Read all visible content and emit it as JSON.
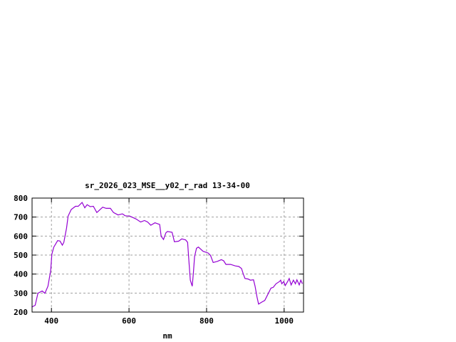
{
  "chart_data": {
    "type": "line",
    "title": "sr_2026_023_MSE__y02_r_rad 13-34-00",
    "xlabel": "nm",
    "ylabel": "",
    "xlim": [
      350,
      1050
    ],
    "ylim": [
      200,
      800
    ],
    "xticks": [
      400,
      600,
      800,
      1000
    ],
    "yticks": [
      200,
      300,
      400,
      500,
      600,
      700,
      800
    ],
    "grid": true,
    "line_color": "#9400d3",
    "series": [
      {
        "x": [
          349,
          358,
          365,
          376,
          383,
          391,
          398,
          401,
          406,
          416,
          422,
          428,
          432,
          439,
          443,
          451,
          462,
          469,
          479,
          486,
          492,
          500,
          508,
          517,
          532,
          541,
          552,
          560,
          572,
          583,
          590,
          602,
          618,
          630,
          640,
          648,
          656,
          667,
          679,
          683,
          689,
          695,
          699,
          711,
          717,
          728,
          736,
          746,
          751,
          755,
          758,
          763,
          766,
          769,
          774,
          779,
          791,
          804,
          810,
          817,
          828,
          838,
          844,
          850,
          862,
          874,
          883,
          890,
          895,
          899,
          907,
          913,
          921,
          925,
          930,
          934,
          942,
          950,
          958,
          966,
          972,
          979,
          988,
          991,
          994,
          999,
          1003,
          1009,
          1013,
          1018,
          1024,
          1029,
          1033,
          1039,
          1043,
          1047
        ],
        "y": [
          226,
          236,
          299,
          311,
          299,
          336,
          418,
          505,
          542,
          576,
          574,
          552,
          567,
          642,
          705,
          740,
          757,
          757,
          777,
          749,
          765,
          755,
          757,
          724,
          752,
          746,
          746,
          724,
          711,
          717,
          707,
          705,
          690,
          674,
          682,
          674,
          657,
          670,
          661,
          599,
          582,
          617,
          624,
          620,
          570,
          573,
          585,
          580,
          567,
          455,
          368,
          336,
          405,
          492,
          536,
          542,
          520,
          511,
          499,
          461,
          467,
          476,
          470,
          451,
          451,
          443,
          440,
          430,
          399,
          377,
          374,
          368,
          370,
          336,
          280,
          242,
          252,
          261,
          293,
          326,
          330,
          349,
          361,
          368,
          349,
          361,
          340,
          361,
          377,
          343,
          368,
          349,
          370,
          343,
          368,
          349
        ]
      }
    ]
  }
}
